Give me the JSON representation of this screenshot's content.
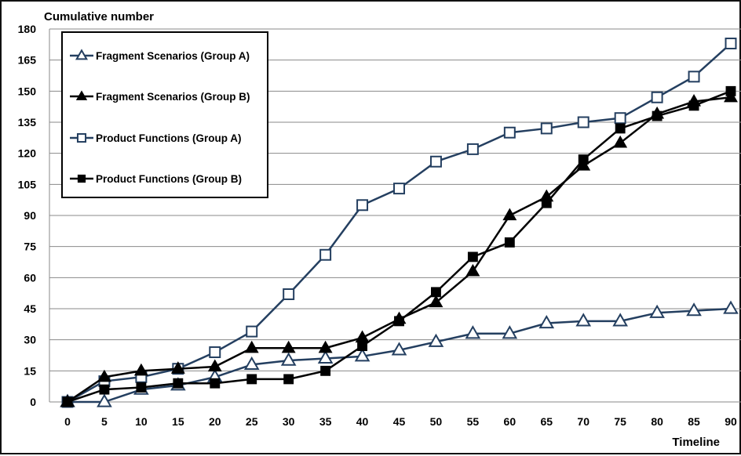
{
  "chart_data": {
    "type": "line",
    "title": "",
    "ylabel": "Cumulative number",
    "xlabel": "Timeline",
    "x": [
      0,
      5,
      10,
      15,
      20,
      25,
      30,
      35,
      40,
      45,
      50,
      55,
      60,
      65,
      70,
      75,
      80,
      85,
      90
    ],
    "xlim": [
      0,
      90
    ],
    "ylim": [
      0,
      180
    ],
    "yticks": [
      0,
      15,
      30,
      45,
      60,
      75,
      90,
      105,
      120,
      135,
      150,
      165,
      180
    ],
    "xticks": [
      0,
      5,
      10,
      15,
      20,
      25,
      30,
      35,
      40,
      45,
      50,
      55,
      60,
      65,
      70,
      75,
      80,
      85,
      90
    ],
    "grid": "horizontal",
    "legend_position": "top-left",
    "series": [
      {
        "name": "Fragment Scenarios (Group A)",
        "color": "#243f60",
        "marker": "open-triangle",
        "values": [
          0,
          0,
          6,
          8,
          12,
          18,
          20,
          21,
          22,
          25,
          29,
          33,
          33,
          38,
          39,
          39,
          43,
          44,
          45
        ]
      },
      {
        "name": "Fragment Scenarios (Group B)",
        "color": "#000000",
        "marker": "filled-triangle",
        "values": [
          0,
          12,
          15,
          16,
          17,
          26,
          26,
          26,
          31,
          40,
          48,
          63,
          90,
          99,
          114,
          125,
          139,
          145,
          147
        ]
      },
      {
        "name": "Product Functions (Group A)",
        "color": "#243f60",
        "marker": "open-square",
        "values": [
          0,
          10,
          12,
          16,
          24,
          34,
          52,
          71,
          95,
          103,
          116,
          122,
          130,
          132,
          135,
          137,
          147,
          157,
          173
        ]
      },
      {
        "name": "Product Functions (Group B)",
        "color": "#000000",
        "marker": "filled-square",
        "values": [
          0,
          6,
          7,
          9,
          9,
          11,
          11,
          15,
          27,
          39,
          53,
          70,
          77,
          96,
          117,
          132,
          138,
          143,
          150
        ]
      }
    ]
  }
}
